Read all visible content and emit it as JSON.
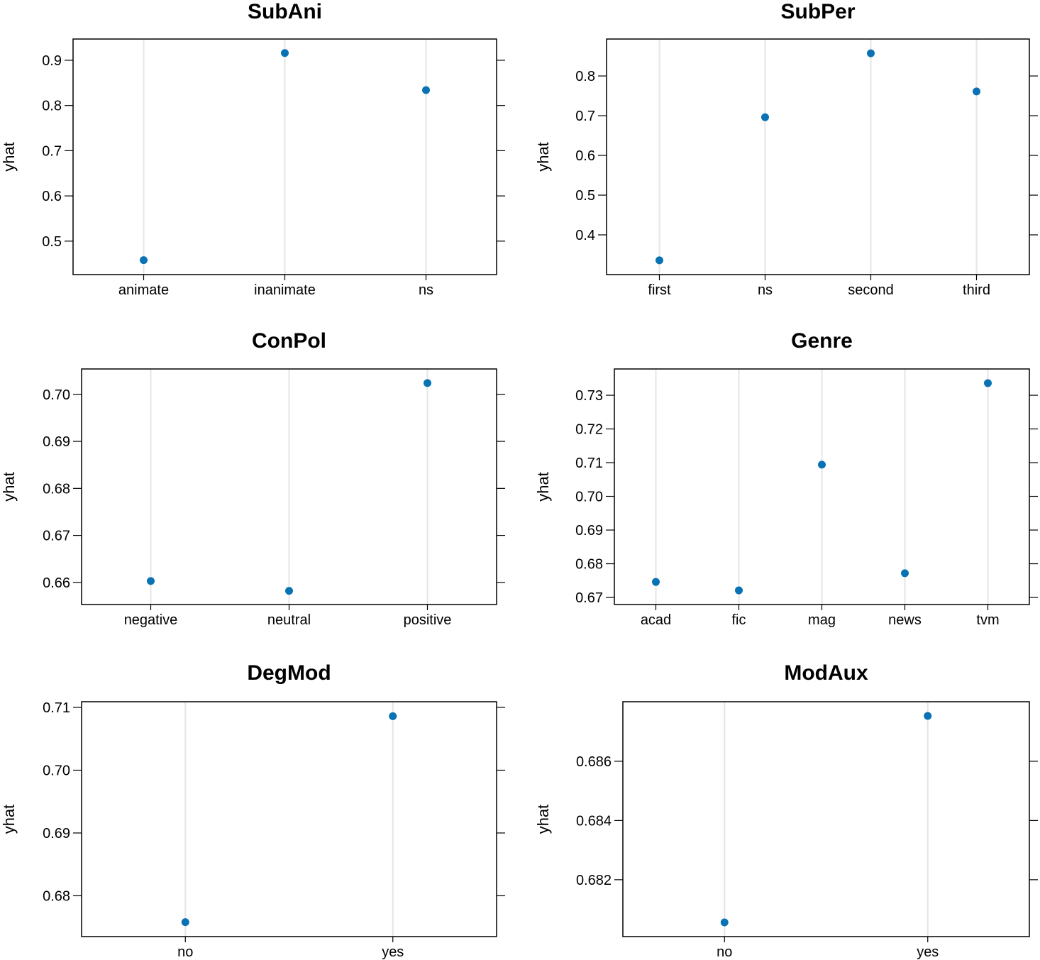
{
  "chart_data": [
    {
      "type": "scatter",
      "title": "SubAni",
      "ylabel": "yhat",
      "categories": [
        "animate",
        "inanimate",
        "ns"
      ],
      "values": [
        0.458,
        0.916,
        0.834
      ],
      "yticks": [
        0.5,
        0.6,
        0.7,
        0.8,
        0.9
      ],
      "ytick_labels": [
        "0.5",
        "0.6",
        "0.7",
        "0.8",
        "0.9"
      ],
      "ylim": [
        0.426,
        0.947
      ]
    },
    {
      "type": "scatter",
      "title": "SubPer",
      "ylabel": "yhat",
      "categories": [
        "first",
        "ns",
        "second",
        "third"
      ],
      "values": [
        0.336,
        0.696,
        0.857,
        0.761
      ],
      "yticks": [
        0.4,
        0.5,
        0.6,
        0.7,
        0.8
      ],
      "ytick_labels": [
        "0.4",
        "0.5",
        "0.6",
        "0.7",
        "0.8"
      ],
      "ylim": [
        0.3,
        0.893
      ]
    },
    {
      "type": "scatter",
      "title": "ConPol",
      "ylabel": "yhat",
      "categories": [
        "negative",
        "neutral",
        "positive"
      ],
      "values": [
        0.6603,
        0.6582,
        0.7024
      ],
      "yticks": [
        0.66,
        0.67,
        0.68,
        0.69,
        0.7
      ],
      "ytick_labels": [
        "0.66",
        "0.67",
        "0.68",
        "0.69",
        "0.70"
      ],
      "ylim": [
        0.6553,
        0.7054
      ]
    },
    {
      "type": "scatter",
      "title": "Genre",
      "ylabel": "yhat",
      "categories": [
        "acad",
        "fic",
        "mag",
        "news",
        "tvm"
      ],
      "values": [
        0.6746,
        0.6721,
        0.7094,
        0.6772,
        0.7336
      ],
      "yticks": [
        0.67,
        0.68,
        0.69,
        0.7,
        0.71,
        0.72,
        0.73
      ],
      "ytick_labels": [
        "0.67",
        "0.68",
        "0.69",
        "0.70",
        "0.71",
        "0.72",
        "0.73"
      ],
      "ylim": [
        0.6679,
        0.7378
      ]
    },
    {
      "type": "scatter",
      "title": "DegMod",
      "ylabel": "yhat",
      "categories": [
        "no",
        "yes"
      ],
      "values": [
        0.6758,
        0.7086
      ],
      "yticks": [
        0.68,
        0.69,
        0.7,
        0.71
      ],
      "ytick_labels": [
        "0.68",
        "0.69",
        "0.70",
        "0.71"
      ],
      "ylim": [
        0.6735,
        0.7109
      ]
    },
    {
      "type": "scatter",
      "title": "ModAux",
      "ylabel": "yhat",
      "categories": [
        "no",
        "yes"
      ],
      "values": [
        0.68056,
        0.68753
      ],
      "yticks": [
        0.682,
        0.684,
        0.686
      ],
      "ytick_labels": [
        "0.682",
        "0.684",
        "0.686"
      ],
      "ylim": [
        0.68008,
        0.68801
      ]
    }
  ],
  "colors": {
    "point": "#0872b5",
    "gridline": "#e6e6e6",
    "axis": "#000000"
  }
}
